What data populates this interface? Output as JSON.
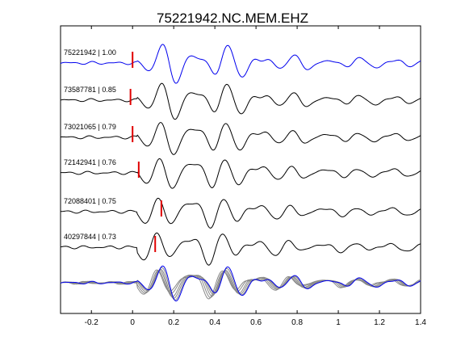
{
  "chart_data": {
    "type": "line",
    "title": "75221942.NC.MEM.EHZ",
    "xlabel": "",
    "ylabel": "",
    "xlim": [
      -0.35,
      1.4
    ],
    "xticks": [
      -0.2,
      0,
      0.2,
      0.4,
      0.6,
      0.8,
      1,
      1.2,
      1.4
    ],
    "xtick_labels": [
      "-0.2",
      "0",
      "0.2",
      "0.4",
      "0.6",
      "0.8",
      "1",
      "1.2",
      "1.4"
    ],
    "grid": false,
    "legend": "none",
    "marker_color": "#e00000",
    "reference_color": "#0000ee",
    "trace_color": "#000000",
    "stack_color": "#888888",
    "traces": [
      {
        "label": "75221942 | 1.00",
        "pick": 0.0,
        "color": "#0000ee",
        "phase": 0.0,
        "amp": 1.0
      },
      {
        "label": "73587781 | 0.85",
        "pick": -0.01,
        "color": "#000000",
        "phase": 0.3,
        "amp": 0.95
      },
      {
        "label": "73021065 | 0.79",
        "pick": 0.0,
        "color": "#000000",
        "phase": 0.7,
        "amp": 0.9
      },
      {
        "label": "72142941 | 0.76",
        "pick": 0.03,
        "color": "#000000",
        "phase": 1.1,
        "amp": 0.9
      },
      {
        "label": "72088401 | 0.75",
        "pick": 0.14,
        "color": "#000000",
        "phase": 1.6,
        "amp": 0.85
      },
      {
        "label": "40297844 | 0.73",
        "pick": 0.11,
        "color": "#000000",
        "phase": 2.1,
        "amp": 0.85
      }
    ]
  }
}
